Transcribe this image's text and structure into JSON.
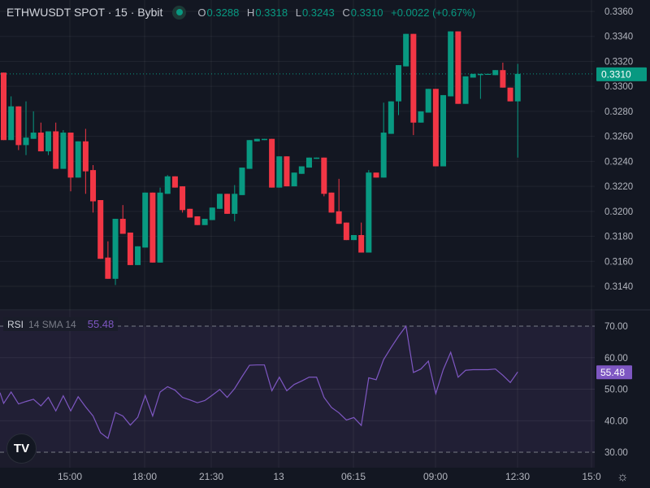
{
  "header": {
    "symbol": "ETHWUSDT SPOT · 15 · Bybit",
    "status_color": "#089981",
    "ohlc": {
      "o_label": "O",
      "o": "0.3288",
      "h_label": "H",
      "h": "0.3318",
      "l_label": "L",
      "l": "0.3243",
      "c_label": "C",
      "c": "0.3310",
      "change": "+0.0022 (+0.67%)"
    }
  },
  "indicator": {
    "name": "RSI",
    "params": "14 SMA 14",
    "value": "55.48",
    "color": "#7e57c2"
  },
  "colors": {
    "up": "#089981",
    "down": "#f23645",
    "background": "#131722",
    "rsi_band": "#211f35"
  },
  "chart_data": [
    {
      "type": "candlestick",
      "interval": "15",
      "price_axis_ticks": [
        "0.3360",
        "0.3340",
        "0.3320",
        "0.3300",
        "0.3280",
        "0.3260",
        "0.3240",
        "0.3220",
        "0.3200",
        "0.3180",
        "0.3160",
        "0.3140"
      ],
      "ylim": [
        0.3128,
        0.3365
      ],
      "last_price_label": "0.3310",
      "time_axis_ticks": [
        "15:00",
        "18:00",
        "21:30",
        "13",
        "06:15",
        "09:00",
        "12:30",
        "15:0"
      ],
      "grid": true,
      "ohlc": [
        [
          0.3311,
          0.3311,
          0.3257,
          0.3257
        ],
        [
          0.3257,
          0.3292,
          0.3257,
          0.3284
        ],
        [
          0.3284,
          0.3284,
          0.3249,
          0.3253
        ],
        [
          0.3253,
          0.3288,
          0.3245,
          0.3259
        ],
        [
          0.3258,
          0.328,
          0.3258,
          0.3263
        ],
        [
          0.3263,
          0.3271,
          0.3248,
          0.3248
        ],
        [
          0.3248,
          0.3264,
          0.3245,
          0.3264
        ],
        [
          0.3264,
          0.3271,
          0.3234,
          0.3234
        ],
        [
          0.3234,
          0.3265,
          0.3234,
          0.3263
        ],
        [
          0.3263,
          0.3263,
          0.3216,
          0.3227
        ],
        [
          0.3227,
          0.3256,
          0.3227,
          0.3256
        ],
        [
          0.3256,
          0.3266,
          0.3214,
          0.3232
        ],
        [
          0.3233,
          0.3237,
          0.3199,
          0.3208
        ],
        [
          0.3209,
          0.3209,
          0.3162,
          0.3162
        ],
        [
          0.3163,
          0.3176,
          0.3146,
          0.3146
        ],
        [
          0.3146,
          0.3194,
          0.3141,
          0.3194
        ],
        [
          0.3194,
          0.3205,
          0.3182,
          0.3182
        ],
        [
          0.3183,
          0.3183,
          0.3157,
          0.3157
        ],
        [
          0.3157,
          0.3172,
          0.3157,
          0.3172
        ],
        [
          0.3171,
          0.3215,
          0.3171,
          0.3215
        ],
        [
          0.3215,
          0.3215,
          0.3159,
          0.3159
        ],
        [
          0.3159,
          0.3219,
          0.3159,
          0.3215
        ],
        [
          0.3214,
          0.3229,
          0.3214,
          0.3228
        ],
        [
          0.3228,
          0.3228,
          0.3219,
          0.3219
        ],
        [
          0.322,
          0.322,
          0.3199,
          0.3201
        ],
        [
          0.3202,
          0.3202,
          0.3195,
          0.3195
        ],
        [
          0.3196,
          0.3196,
          0.3189,
          0.3189
        ],
        [
          0.3189,
          0.3194,
          0.3189,
          0.3194
        ],
        [
          0.3193,
          0.3203,
          0.3193,
          0.3203
        ],
        [
          0.3202,
          0.3214,
          0.3202,
          0.3214
        ],
        [
          0.3214,
          0.3214,
          0.3198,
          0.3198
        ],
        [
          0.3198,
          0.3221,
          0.3192,
          0.3214
        ],
        [
          0.3213,
          0.3235,
          0.3213,
          0.3235
        ],
        [
          0.3234,
          0.3257,
          0.3234,
          0.3257
        ],
        [
          0.3256,
          0.3258,
          0.3256,
          0.3258
        ],
        [
          0.3257,
          0.3258,
          0.3257,
          0.3258
        ],
        [
          0.3258,
          0.3258,
          0.3219,
          0.3219
        ],
        [
          0.3219,
          0.3244,
          0.3219,
          0.3244
        ],
        [
          0.3244,
          0.3244,
          0.322,
          0.322
        ],
        [
          0.322,
          0.3231,
          0.322,
          0.3231
        ],
        [
          0.323,
          0.3236,
          0.323,
          0.3236
        ],
        [
          0.3235,
          0.3243,
          0.3235,
          0.3243
        ],
        [
          0.3242,
          0.3243,
          0.3242,
          0.3243
        ],
        [
          0.3243,
          0.3243,
          0.3212,
          0.3214
        ],
        [
          0.3215,
          0.3215,
          0.3199,
          0.3199
        ],
        [
          0.32,
          0.3226,
          0.319,
          0.319
        ],
        [
          0.3191,
          0.3191,
          0.3177,
          0.3177
        ],
        [
          0.3177,
          0.3181,
          0.3177,
          0.3181
        ],
        [
          0.3181,
          0.3191,
          0.3167,
          0.3167
        ],
        [
          0.3167,
          0.3233,
          0.3167,
          0.3231
        ],
        [
          0.3231,
          0.3231,
          0.3227,
          0.3227
        ],
        [
          0.3227,
          0.3287,
          0.3227,
          0.3263
        ],
        [
          0.3262,
          0.3288,
          0.3262,
          0.3288
        ],
        [
          0.3288,
          0.3317,
          0.3277,
          0.3317
        ],
        [
          0.3316,
          0.3342,
          0.3316,
          0.3342
        ],
        [
          0.3342,
          0.3342,
          0.3261,
          0.3271
        ],
        [
          0.3271,
          0.328,
          0.3271,
          0.328
        ],
        [
          0.3279,
          0.3298,
          0.3279,
          0.3298
        ],
        [
          0.3298,
          0.3298,
          0.3236,
          0.3236
        ],
        [
          0.3236,
          0.3293,
          0.3236,
          0.3293
        ],
        [
          0.3292,
          0.3344,
          0.3292,
          0.3344
        ],
        [
          0.3344,
          0.3344,
          0.3286,
          0.3286
        ],
        [
          0.3286,
          0.3308,
          0.3286,
          0.3308
        ],
        [
          0.3307,
          0.331,
          0.3307,
          0.331
        ],
        [
          0.3309,
          0.331,
          0.329,
          0.331
        ],
        [
          0.331,
          0.331,
          0.331,
          0.331
        ],
        [
          0.3309,
          0.3313,
          0.3309,
          0.3313
        ],
        [
          0.3313,
          0.3319,
          0.3299,
          0.3299
        ],
        [
          0.3299,
          0.3299,
          0.3288,
          0.3288
        ],
        [
          0.3288,
          0.3318,
          0.3243,
          0.331
        ]
      ]
    },
    {
      "type": "line",
      "series": [
        {
          "name": "RSI",
          "values": [
            45.5,
            49.1,
            45.3,
            46.1,
            46.8,
            44.7,
            47.4,
            43.1,
            47.9,
            43.1,
            47.6,
            44.4,
            41.5,
            36.2,
            34.4,
            42.6,
            41.5,
            38.6,
            41.1,
            48.0,
            41.5,
            49.1,
            50.8,
            49.7,
            47.4,
            46.6,
            45.7,
            46.4,
            48.1,
            49.9,
            47.4,
            50.2,
            54.0,
            57.6,
            57.7,
            57.7,
            49.5,
            53.8,
            49.5,
            51.5,
            52.6,
            53.8,
            53.8,
            47.4,
            44.2,
            42.5,
            40.2,
            41.0,
            38.5,
            53.6,
            53.0,
            59.4,
            63.2,
            66.8,
            70.0,
            55.3,
            56.4,
            58.9,
            48.6,
            56.2,
            61.7,
            53.8,
            56.0,
            56.2,
            56.2,
            56.2,
            56.4,
            54.4,
            52.1,
            55.48
          ]
        }
      ],
      "ylim": [
        26,
        72
      ],
      "y_ticks": [
        "70.00",
        "60.00",
        "50.00",
        "40.00",
        "30.00"
      ],
      "bands": [
        30,
        70
      ]
    }
  ]
}
